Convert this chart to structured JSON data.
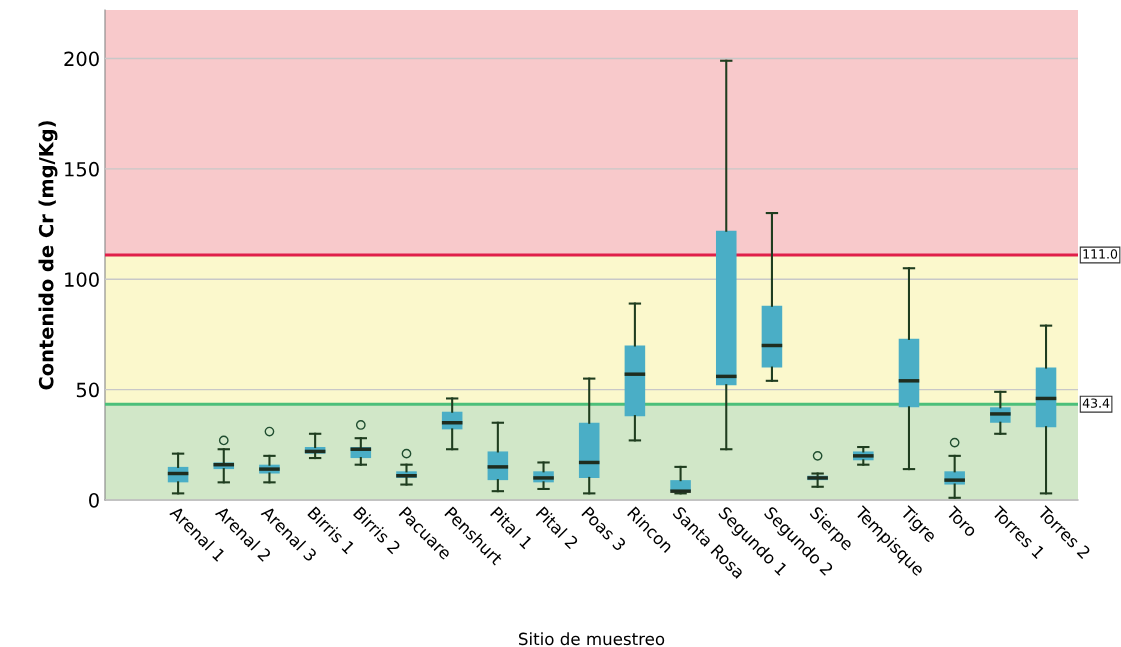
{
  "chart_data": {
    "type": "box",
    "xlabel": "Sitio de muestreo",
    "ylabel": "Contenido de Cr (mg/Kg)",
    "categories": [
      "Arenal 1",
      "Arenal 2",
      "Arenal 3",
      "Birris 1",
      "Birris 2",
      "Pacuare",
      "Penshurt",
      "Pital 1",
      "Pital 2",
      "Poas 3",
      "Rincon",
      "Santa Rosa",
      "Segundo 1",
      "Segundo 2",
      "Sierpe",
      "Tempisque",
      "Tigre",
      "Toro",
      "Torres 1",
      "Torres 2"
    ],
    "color": "#4aaec6",
    "boxes": [
      {
        "low": 3,
        "q1": 8,
        "median": 12,
        "q3": 15,
        "high": 21
      },
      {
        "low": 8,
        "q1": 14,
        "median": 16,
        "q3": 17,
        "high": 23,
        "outliers": [
          27
        ]
      },
      {
        "low": 8,
        "q1": 12,
        "median": 14,
        "q3": 16,
        "high": 20,
        "outliers": [
          31
        ]
      },
      {
        "low": 19,
        "q1": 21,
        "median": 22,
        "q3": 24,
        "high": 30
      },
      {
        "low": 16,
        "q1": 19,
        "median": 23,
        "q3": 24,
        "high": 28,
        "outliers": [
          34
        ]
      },
      {
        "low": 7,
        "q1": 10,
        "median": 11,
        "q3": 13,
        "high": 16,
        "outliers": [
          21
        ]
      },
      {
        "low": 23,
        "q1": 32,
        "median": 35,
        "q3": 40,
        "high": 46
      },
      {
        "low": 4,
        "q1": 9,
        "median": 15,
        "q3": 22,
        "high": 35
      },
      {
        "low": 5,
        "q1": 8,
        "median": 10,
        "q3": 13,
        "high": 17
      },
      {
        "low": 3,
        "q1": 10,
        "median": 17,
        "q3": 35,
        "high": 55
      },
      {
        "low": 27,
        "q1": 38,
        "median": 57,
        "q3": 70,
        "high": 89
      },
      {
        "low": 3,
        "q1": 4,
        "median": 4,
        "q3": 9,
        "high": 15
      },
      {
        "low": 23,
        "q1": 52,
        "median": 56,
        "q3": 122,
        "high": 199
      },
      {
        "low": 54,
        "q1": 60,
        "median": 70,
        "q3": 88,
        "high": 130
      },
      {
        "low": 6,
        "q1": 9,
        "median": 10,
        "q3": 11,
        "high": 12,
        "outliers": [
          20
        ]
      },
      {
        "low": 16,
        "q1": 18,
        "median": 20,
        "q3": 22,
        "high": 24
      },
      {
        "low": 14,
        "q1": 42,
        "median": 54,
        "q3": 73,
        "high": 105
      },
      {
        "low": 1,
        "q1": 7,
        "median": 9,
        "q3": 13,
        "high": 20,
        "outliers": [
          26
        ]
      },
      {
        "low": 30,
        "q1": 35,
        "median": 39,
        "q3": 42,
        "high": 49
      },
      {
        "low": 3,
        "q1": 33,
        "median": 46,
        "q3": 60,
        "high": 79
      }
    ],
    "ylim": [
      0,
      222
    ],
    "yticks": [
      0,
      50,
      100,
      150,
      200
    ],
    "grid": "y",
    "bands": [
      {
        "axis": "y",
        "from": 0,
        "to": 43.4,
        "color": "#d1e7c8"
      },
      {
        "axis": "y",
        "from": 43.4,
        "to": 111,
        "color": "#fbf8cc"
      },
      {
        "axis": "y",
        "from": 111,
        "to": 222,
        "color": "#f8c9cb"
      }
    ],
    "ref_lines": [
      {
        "axis": "y",
        "value": 111,
        "label": "111.0",
        "color": "#e0204a"
      },
      {
        "axis": "y",
        "value": 43.4,
        "label": "43.4",
        "color": "#4cbf7a"
      }
    ]
  }
}
